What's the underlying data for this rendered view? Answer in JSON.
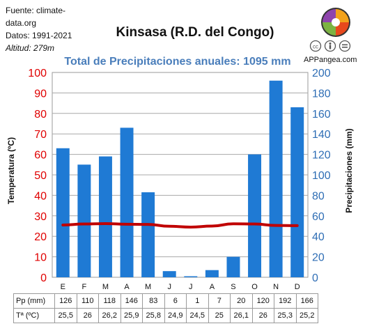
{
  "source_lines": [
    "Fuente: climate-",
    "data.org",
    "Datos: 1991-2021"
  ],
  "altitude": "Altitud: 279m",
  "brand": "APPangea.com",
  "chart_data": {
    "type": "bar",
    "title": "Kinsasa (R.D. del Congo)",
    "subtitle": "Total de Precipitaciones anuales: 1095 mm",
    "categories": [
      "E",
      "F",
      "M",
      "A",
      "M",
      "J",
      "J",
      "A",
      "S",
      "O",
      "N",
      "D"
    ],
    "series": [
      {
        "type": "bar",
        "axis": "right",
        "color": "#1f7ad4",
        "values": [
          126,
          110,
          118,
          146,
          83,
          6,
          1,
          7,
          20,
          120,
          192,
          166
        ]
      },
      {
        "type": "line",
        "axis": "left",
        "color": "#c00000",
        "values": [
          25.5,
          26,
          26.2,
          25.9,
          25.8,
          24.9,
          24.5,
          25,
          26.1,
          26,
          25.3,
          25.2
        ]
      }
    ],
    "ylabel_left": "Temperatura (ºC)",
    "ylabel_right": "Precipitaciones (mm)",
    "ylim_left": [
      0,
      100
    ],
    "ylim_right": [
      0,
      200
    ],
    "yticks_left": [
      "0",
      "10",
      "20",
      "30",
      "40",
      "50",
      "60",
      "70",
      "80",
      "90",
      "100"
    ],
    "yticks_right": [
      "0",
      "20",
      "40",
      "60",
      "80",
      "100",
      "120",
      "140",
      "160",
      "180",
      "200"
    ],
    "grid": true
  },
  "table": {
    "rows": [
      {
        "label": "Pp (mm)",
        "cells": [
          "126",
          "110",
          "118",
          "146",
          "83",
          "6",
          "1",
          "7",
          "20",
          "120",
          "192",
          "166"
        ]
      },
      {
        "label": "Tª (ºC)",
        "cells": [
          "25,5",
          "26",
          "26,2",
          "25,9",
          "25,8",
          "24,9",
          "24,5",
          "25",
          "26,1",
          "26",
          "25,3",
          "25,2"
        ]
      }
    ]
  }
}
